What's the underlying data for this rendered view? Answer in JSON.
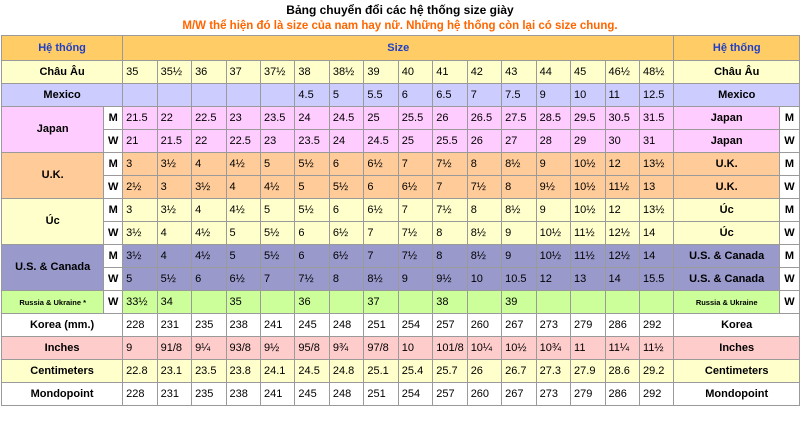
{
  "title": "Bảng chuyển đổi các hệ thống size giày",
  "subtitle": "M/W thể hiện đó là size của nam hay nữ. Những hệ thống còn lại có size chung.",
  "header": {
    "left": "Hệ thống",
    "middle": "Size",
    "right": "Hệ thống"
  },
  "groups": [
    {
      "label": "Châu Âu",
      "right": "Châu Âu",
      "color": "#ffffcc",
      "rows": [
        {
          "mw": "",
          "values": [
            "35",
            "35½",
            "36",
            "37",
            "37½",
            "38",
            "38½",
            "39",
            "40",
            "41",
            "42",
            "43",
            "44",
            "45",
            "46½",
            "48½"
          ]
        }
      ]
    },
    {
      "label": "Mexico",
      "right": "Mexico",
      "color": "#ccccff",
      "rows": [
        {
          "mw": "",
          "values": [
            "",
            "",
            "",
            "",
            "",
            "4.5",
            "5",
            "5.5",
            "6",
            "6.5",
            "7",
            "7.5",
            "9",
            "10",
            "11",
            "12.5"
          ]
        }
      ]
    },
    {
      "label": "Japan",
      "right": "Japan",
      "color": "#ffccff",
      "rows": [
        {
          "mw": "M",
          "values": [
            "21.5",
            "22",
            "22.5",
            "23",
            "23.5",
            "24",
            "24.5",
            "25",
            "25.5",
            "26",
            "26.5",
            "27.5",
            "28.5",
            "29.5",
            "30.5",
            "31.5"
          ]
        },
        {
          "mw": "W",
          "values": [
            "21",
            "21.5",
            "22",
            "22.5",
            "23",
            "23.5",
            "24",
            "24.5",
            "25",
            "25.5",
            "26",
            "27",
            "28",
            "29",
            "30",
            "31"
          ]
        }
      ]
    },
    {
      "label": "U.K.",
      "right": "U.K.",
      "color": "#ffcc99",
      "rows": [
        {
          "mw": "M",
          "values": [
            "3",
            "3½",
            "4",
            "4½",
            "5",
            "5½",
            "6",
            "6½",
            "7",
            "7½",
            "8",
            "8½",
            "9",
            "10½",
            "12",
            "13½"
          ]
        },
        {
          "mw": "W",
          "values": [
            "2½",
            "3",
            "3½",
            "4",
            "4½",
            "5",
            "5½",
            "6",
            "6½",
            "7",
            "7½",
            "8",
            "9½",
            "10½",
            "11½",
            "13"
          ]
        }
      ]
    },
    {
      "label": "Úc",
      "right": "Úc",
      "color": "#ffffcc",
      "rows": [
        {
          "mw": "M",
          "values": [
            "3",
            "3½",
            "4",
            "4½",
            "5",
            "5½",
            "6",
            "6½",
            "7",
            "7½",
            "8",
            "8½",
            "9",
            "10½",
            "12",
            "13½"
          ]
        },
        {
          "mw": "W",
          "values": [
            "3½",
            "4",
            "4½",
            "5",
            "5½",
            "6",
            "6½",
            "7",
            "7½",
            "8",
            "8½",
            "9",
            "10½",
            "11½",
            "12½",
            "14"
          ]
        }
      ]
    },
    {
      "label": "U.S. & Canada",
      "right": "U.S. & Canada",
      "color": "#9999cc",
      "rows": [
        {
          "mw": "M",
          "values": [
            "3½",
            "4",
            "4½",
            "5",
            "5½",
            "6",
            "6½",
            "7",
            "7½",
            "8",
            "8½",
            "9",
            "10½",
            "11½",
            "12½",
            "14"
          ]
        },
        {
          "mw": "W",
          "values": [
            "5",
            "5½",
            "6",
            "6½",
            "7",
            "7½",
            "8",
            "8½",
            "9",
            "9½",
            "10",
            "10.5",
            "12",
            "13",
            "14",
            "15.5"
          ]
        }
      ]
    },
    {
      "label": "Russia & Ukraine *",
      "right": "Russia & Ukraine",
      "color": "#ccff99",
      "small": true,
      "rows": [
        {
          "mw": "W",
          "values": [
            "33½",
            "34",
            "",
            "35",
            "",
            "36",
            "",
            "37",
            "",
            "38",
            "",
            "39",
            "",
            "",
            "",
            ""
          ]
        }
      ]
    },
    {
      "label": "Korea (mm.)",
      "right": "Korea",
      "color": "#ffffff",
      "rows": [
        {
          "mw": "",
          "values": [
            "228",
            "231",
            "235",
            "238",
            "241",
            "245",
            "248",
            "251",
            "254",
            "257",
            "260",
            "267",
            "273",
            "279",
            "286",
            "292"
          ]
        }
      ]
    },
    {
      "label": "Inches",
      "right": "Inches",
      "color": "#ffcccc",
      "rows": [
        {
          "mw": "",
          "values": [
            "9",
            "91/8",
            "9¼",
            "93/8",
            "9½",
            "95/8",
            "9¾",
            "97/8",
            "10",
            "101/8",
            "10¼",
            "10½",
            "10¾",
            "11",
            "11¼",
            "11½"
          ]
        }
      ]
    },
    {
      "label": "Centimeters",
      "right": "Centimeters",
      "color": "#ffffcc",
      "rows": [
        {
          "mw": "",
          "values": [
            "22.8",
            "23.1",
            "23.5",
            "23.8",
            "24.1",
            "24.5",
            "24.8",
            "25.1",
            "25.4",
            "25.7",
            "26",
            "26.7",
            "27.3",
            "27.9",
            "28.6",
            "29.2"
          ]
        }
      ]
    },
    {
      "label": "Mondopoint",
      "right": "Mondopoint",
      "color": "#ffffff",
      "rows": [
        {
          "mw": "",
          "values": [
            "228",
            "231",
            "235",
            "238",
            "241",
            "245",
            "248",
            "251",
            "254",
            "257",
            "260",
            "267",
            "273",
            "279",
            "286",
            "292"
          ]
        }
      ]
    }
  ],
  "colors": {
    "header": "#ffcc66",
    "title": "#000000",
    "subtitle": "#ff6600",
    "header_text": "#1f3fc4",
    "border": "#9a9a9a",
    "mw_cell": "#ffffff"
  }
}
